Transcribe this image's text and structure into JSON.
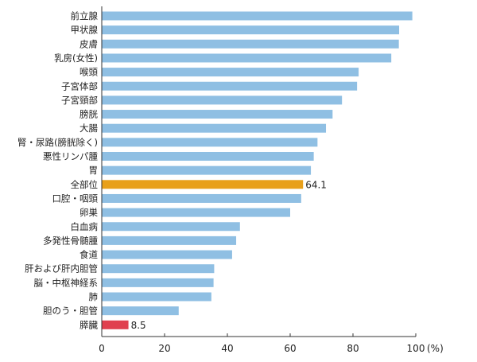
{
  "chart_data": {
    "type": "bar",
    "orientation": "horizontal",
    "categories": [
      "前立腺",
      "甲状腺",
      "皮膚",
      "乳房(女性)",
      "喉頭",
      "子宮体部",
      "子宮頸部",
      "膀胱",
      "大腸",
      "腎・尿路(膀胱除く)",
      "悪性リンパ腫",
      "胃",
      "全部位",
      "口腔・咽頭",
      "卵巣",
      "白血病",
      "多発性骨髄腫",
      "食道",
      "肝および肝内胆管",
      "脳・中枢神経系",
      "肺",
      "胆のう・胆管",
      "膵臓"
    ],
    "values": [
      98.9,
      94.7,
      94.6,
      92.2,
      81.8,
      81.3,
      76.5,
      73.5,
      71.4,
      68.7,
      67.5,
      66.6,
      64.1,
      63.5,
      60.0,
      44.0,
      42.8,
      41.5,
      35.8,
      35.6,
      34.9,
      24.5,
      8.5
    ],
    "highlight": {
      "全部位": "#e8a01a",
      "膵臓": "#e0404f"
    },
    "data_labels": {
      "全部位": "64.1",
      "膵臓": "8.5"
    },
    "xlim": [
      0,
      100
    ],
    "xticks": [
      "0",
      "20",
      "40",
      "60",
      "80",
      "100"
    ],
    "unit": "(%)",
    "grid": false,
    "colors": {
      "bar": "#8fbfe3",
      "axis": "#333333"
    }
  }
}
